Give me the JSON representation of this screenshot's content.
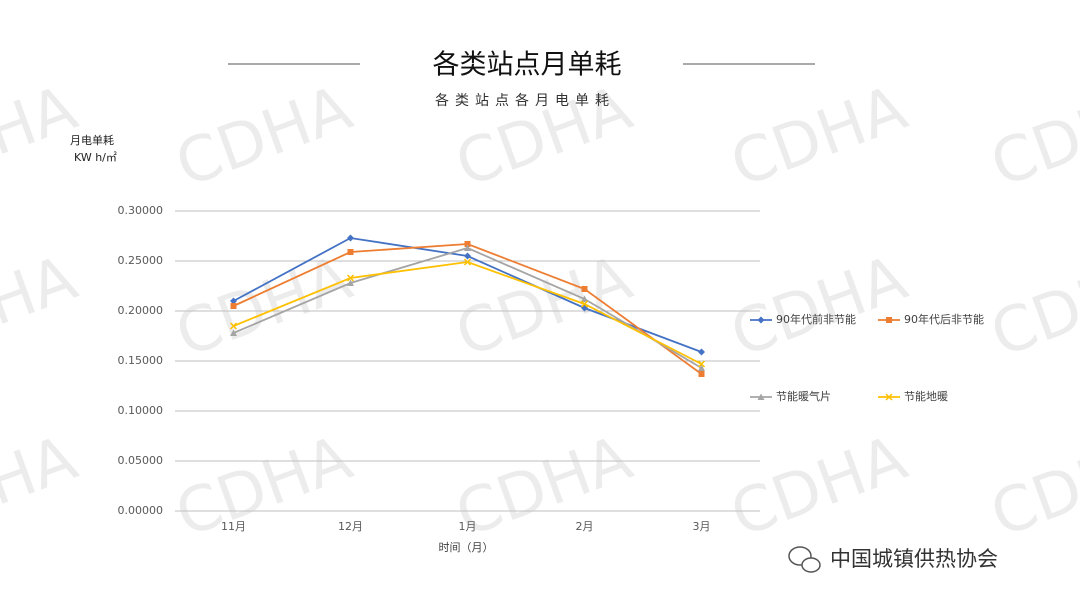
{
  "watermark": "CDHA",
  "footer": "中国城镇供热协会",
  "chart_data": {
    "type": "line",
    "title": "各类站点月单耗",
    "subtitle": "各类站点各月电单耗",
    "y_label": [
      "月电单耗",
      "KW h/㎡"
    ],
    "x_label": "时间（月）",
    "categories": [
      "11月",
      "12月",
      "1月",
      "2月",
      "3月"
    ],
    "series": [
      {
        "name": "90年代前非节能",
        "color": "#4472c4",
        "marker": "diamond",
        "values": [
          0.21,
          0.273,
          0.255,
          0.203,
          0.159
        ]
      },
      {
        "name": "90年代后非节能",
        "color": "#ed7d31",
        "marker": "square",
        "values": [
          0.205,
          0.259,
          0.267,
          0.222,
          0.137
        ]
      },
      {
        "name": "节能暖气片",
        "color": "#a5a5a5",
        "marker": "triangle",
        "values": [
          0.178,
          0.228,
          0.263,
          0.212,
          0.143
        ]
      },
      {
        "name": "节能地暖",
        "color": "#ffc000",
        "marker": "x",
        "values": [
          0.185,
          0.233,
          0.249,
          0.207,
          0.147
        ]
      }
    ],
    "ylim": [
      0,
      0.3
    ],
    "yticks": [
      {
        "value": 0,
        "label": "0.00000"
      },
      {
        "value": 0.05,
        "label": "0.05000"
      },
      {
        "value": 0.1,
        "label": "0.10000"
      },
      {
        "value": 0.15,
        "label": "0.15000"
      },
      {
        "value": 0.2,
        "label": "0.20000"
      },
      {
        "value": 0.25,
        "label": "0.25000"
      },
      {
        "value": 0.3,
        "label": "0.30000"
      }
    ],
    "grid": true,
    "legend": "right"
  }
}
